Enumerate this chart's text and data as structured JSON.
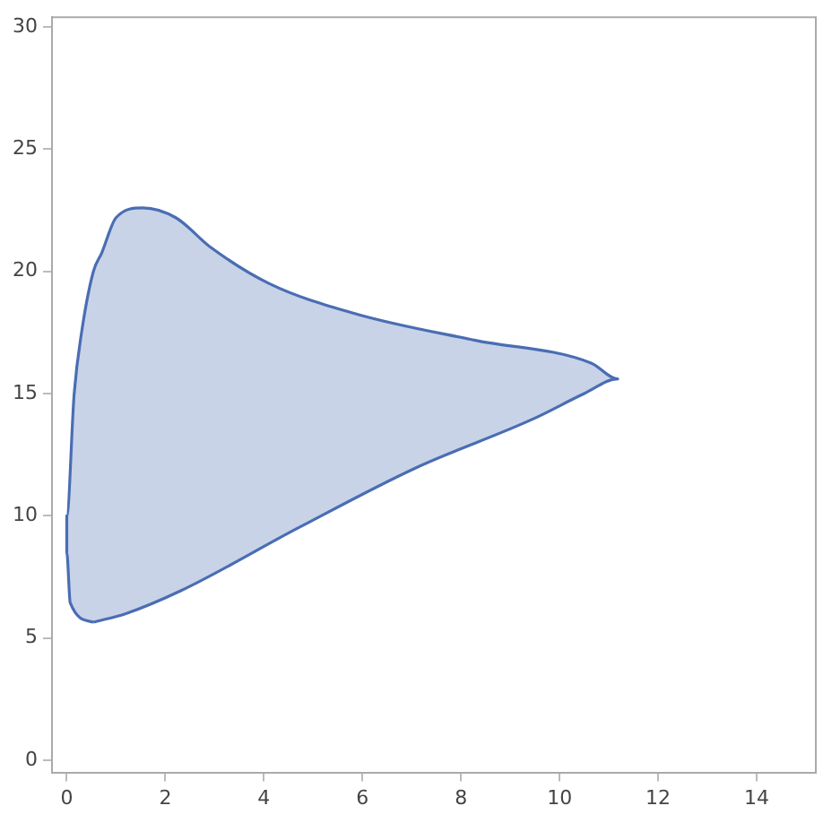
{
  "chart_data": {
    "type": "area",
    "xlim": [
      -0.3,
      15.2
    ],
    "ylim": [
      -0.5,
      30.4
    ],
    "xticks": [
      0,
      2,
      4,
      6,
      8,
      10,
      12,
      14
    ],
    "yticks": [
      0,
      5,
      10,
      15,
      20,
      25,
      30
    ],
    "grid": false,
    "legend": false,
    "marker": "none",
    "series": [
      {
        "color": "#4a6db3",
        "x": [
          0.54,
          0.07,
          0.0,
          0.0,
          0.15,
          0.3,
          0.54,
          0.71,
          1.0,
          1.54,
          2.21,
          2.93,
          4.11,
          5.89,
          8.29,
          10.64,
          11.18,
          10.5,
          9.46,
          7.07,
          4.71,
          2.32,
          1.2,
          0.54
        ],
        "values": [
          5.65,
          6.44,
          8.5,
          10.0,
          15.0,
          17.5,
          20.0,
          20.76,
          22.2,
          22.6,
          22.2,
          20.97,
          19.5,
          18.25,
          17.18,
          16.25,
          15.6,
          15.0,
          13.96,
          11.95,
          9.52,
          6.94,
          6.0,
          5.65
        ]
      }
    ]
  }
}
